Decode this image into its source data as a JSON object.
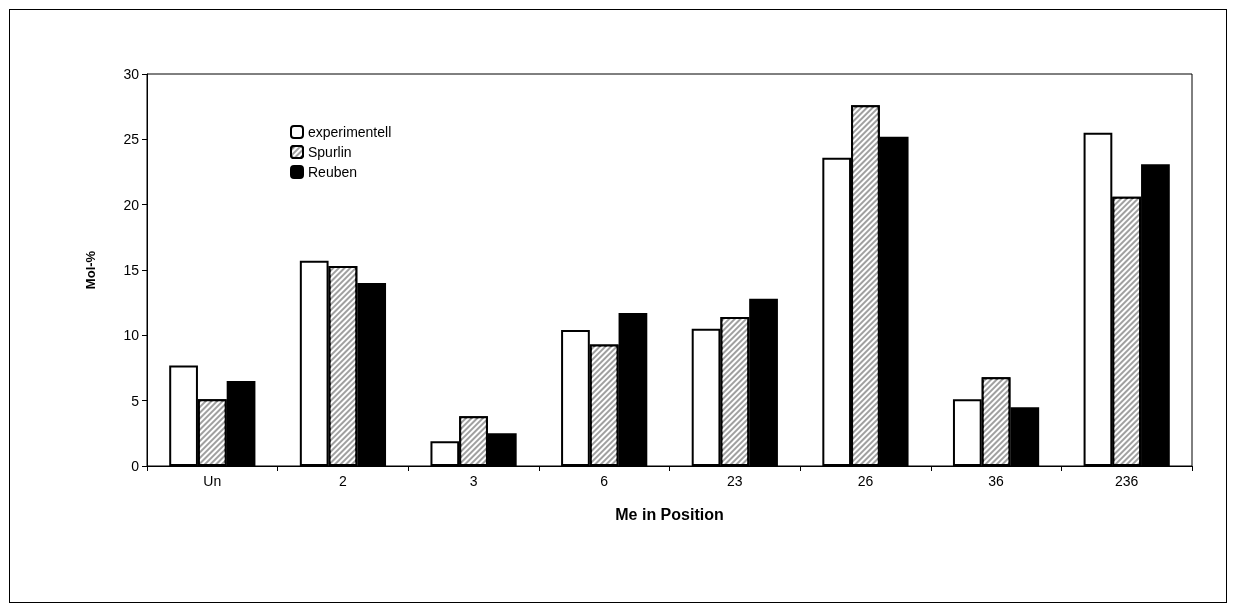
{
  "chart_data": {
    "type": "bar",
    "xlabel": "Me in Position",
    "ylabel": "Mol-%",
    "categories": [
      "Un",
      "2",
      "3",
      "6",
      "23",
      "26",
      "36",
      "236"
    ],
    "series": [
      {
        "name": "experimentell",
        "color": "#ffffff",
        "values": [
          7.7,
          15.7,
          1.9,
          10.4,
          10.5,
          23.6,
          5.1,
          25.5
        ]
      },
      {
        "name": "Spurlin",
        "color": "#a0a0a0",
        "values": [
          5.1,
          15.3,
          3.8,
          9.3,
          11.4,
          27.6,
          6.8,
          20.6
        ]
      },
      {
        "name": "Reuben",
        "color": "#000000",
        "values": [
          6.5,
          14.0,
          2.5,
          11.7,
          12.8,
          25.2,
          4.5,
          23.1
        ]
      }
    ],
    "ylim": [
      0,
      30
    ],
    "yticks": [
      0,
      5,
      10,
      15,
      20,
      25,
      30
    ],
    "grid": false,
    "legend": "top left"
  }
}
